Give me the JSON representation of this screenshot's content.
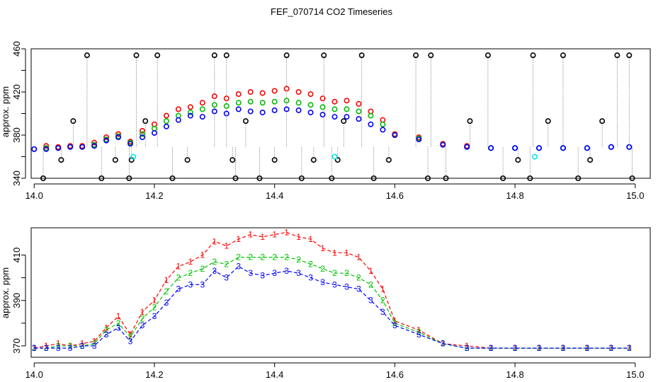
{
  "title": "FEF_070714  CO2 Timeseries",
  "chart_data": [
    {
      "type": "scatter",
      "title": "FEF_070714  CO2 Timeseries",
      "ylabel": "approx. ppm",
      "xlabel": "",
      "xlim": [
        13.995,
        15.025
      ],
      "ylim": [
        340,
        460
      ],
      "xticks": [
        14.0,
        14.2,
        14.4,
        14.6,
        14.8,
        15.0
      ],
      "xtick_labels": [
        "14.0",
        "14.2",
        "14.4",
        "14.6",
        "14.8",
        "15.0"
      ],
      "yticks": [
        340,
        380,
        420,
        460
      ],
      "ytick_labels": [
        "340",
        "380",
        "420",
        "460"
      ],
      "yminor_ticks": [
        360,
        400,
        440
      ],
      "grid": false,
      "colors": {
        "red": "#ff0000",
        "green": "#00c000",
        "blue": "#0000ff",
        "black": "#000000",
        "cyan": "#00e5ee"
      },
      "series": [
        {
          "color": "red",
          "x": [
            14.0,
            14.02,
            14.04,
            14.06,
            14.08,
            14.1,
            14.12,
            14.14,
            14.16,
            14.18,
            14.2,
            14.22,
            14.24,
            14.26,
            14.28,
            14.3,
            14.32,
            14.34,
            14.36,
            14.38,
            14.4,
            14.42,
            14.44,
            14.46,
            14.48,
            14.5,
            14.52,
            14.54,
            14.56,
            14.58,
            14.6,
            14.64,
            14.68,
            14.72,
            14.76,
            14.8,
            14.84,
            14.88,
            14.92,
            14.96,
            14.99
          ],
          "y": [
            367,
            370,
            369,
            370,
            370,
            373,
            378,
            381,
            374,
            384,
            390,
            398,
            404,
            406,
            410,
            416,
            414,
            418,
            420,
            419,
            421,
            423,
            420,
            418,
            414,
            411,
            412,
            409,
            402,
            394,
            381,
            378,
            372,
            370,
            368,
            368,
            368,
            368,
            368,
            369,
            369
          ]
        },
        {
          "color": "green",
          "x": [
            14.0,
            14.02,
            14.04,
            14.06,
            14.08,
            14.1,
            14.12,
            14.14,
            14.16,
            14.18,
            14.2,
            14.22,
            14.24,
            14.26,
            14.28,
            14.3,
            14.32,
            14.34,
            14.36,
            14.38,
            14.4,
            14.42,
            14.44,
            14.46,
            14.48,
            14.5,
            14.52,
            14.54,
            14.56,
            14.58,
            14.6,
            14.64,
            14.68,
            14.72,
            14.76,
            14.8,
            14.84,
            14.88,
            14.92,
            14.96,
            14.99
          ],
          "y": [
            367,
            368,
            368,
            369,
            369,
            371,
            376,
            379,
            373,
            381,
            386,
            393,
            398,
            401,
            404,
            408,
            407,
            410,
            411,
            410,
            411,
            412,
            410,
            408,
            406,
            404,
            404,
            402,
            398,
            390,
            380,
            377,
            371,
            369,
            368,
            368,
            368,
            368,
            368,
            369,
            369
          ]
        },
        {
          "color": "blue",
          "x": [
            14.0,
            14.02,
            14.04,
            14.06,
            14.08,
            14.1,
            14.12,
            14.14,
            14.16,
            14.18,
            14.2,
            14.22,
            14.24,
            14.26,
            14.28,
            14.3,
            14.32,
            14.34,
            14.36,
            14.38,
            14.4,
            14.42,
            14.44,
            14.46,
            14.48,
            14.5,
            14.52,
            14.54,
            14.56,
            14.58,
            14.6,
            14.64,
            14.68,
            14.72,
            14.76,
            14.8,
            14.84,
            14.88,
            14.92,
            14.96,
            14.99
          ],
          "y": [
            367,
            367,
            368,
            369,
            369,
            370,
            375,
            378,
            372,
            378,
            382,
            388,
            394,
            398,
            397,
            402,
            400,
            404,
            402,
            401,
            403,
            404,
            403,
            401,
            399,
            397,
            397,
            395,
            390,
            385,
            380,
            376,
            371,
            369,
            368,
            368,
            368,
            368,
            368,
            369,
            369
          ]
        },
        {
          "color": "black",
          "marker": "spike-circle",
          "x": [
            14.015,
            14.045,
            14.065,
            14.088,
            14.112,
            14.135,
            14.158,
            14.162,
            14.17,
            14.185,
            14.205,
            14.23,
            14.255,
            14.3,
            14.32,
            14.33,
            14.335,
            14.352,
            14.375,
            14.4,
            14.42,
            14.445,
            14.465,
            14.482,
            14.495,
            14.505,
            14.515,
            14.545,
            14.565,
            14.59,
            14.635,
            14.655,
            14.66,
            14.685,
            14.725,
            14.755,
            14.78,
            14.805,
            14.825,
            14.83,
            14.855,
            14.88,
            14.905,
            14.925,
            14.945,
            14.97,
            14.99,
            14.995
          ],
          "y": [
            340,
            357,
            393,
            454,
            340,
            357,
            340,
            357,
            454,
            393,
            454,
            340,
            357,
            454,
            454,
            357,
            340,
            393,
            340,
            357,
            454,
            340,
            357,
            454,
            340,
            357,
            393,
            454,
            340,
            357,
            454,
            340,
            454,
            340,
            393,
            454,
            340,
            357,
            340,
            454,
            393,
            454,
            340,
            357,
            393,
            454,
            454,
            340
          ]
        },
        {
          "color": "cyan",
          "x": [
            14.165,
            14.5,
            14.833
          ],
          "y": [
            360,
            360,
            360
          ]
        }
      ]
    },
    {
      "type": "line",
      "title": "",
      "ylabel": "approx. ppm",
      "xlabel": "",
      "xlim": [
        13.995,
        15.025
      ],
      "ylim": [
        365,
        422
      ],
      "xticks": [
        14.0,
        14.2,
        14.4,
        14.6,
        14.8,
        15.0
      ],
      "xtick_labels": [
        "14.0",
        "14.2",
        "14.4",
        "14.6",
        "14.8",
        "15.0"
      ],
      "yticks": [
        370,
        390,
        410
      ],
      "ytick_labels": [
        "370",
        "390",
        "410"
      ],
      "yminor_ticks": [
        380,
        400
      ],
      "grid": false,
      "colors": {
        "red": "#ff0000",
        "green": "#00c000",
        "blue": "#0000ff"
      },
      "series": [
        {
          "label": "1",
          "color": "red",
          "x": [
            14.0,
            14.02,
            14.04,
            14.06,
            14.08,
            14.1,
            14.12,
            14.14,
            14.16,
            14.18,
            14.2,
            14.22,
            14.24,
            14.26,
            14.28,
            14.3,
            14.32,
            14.34,
            14.36,
            14.38,
            14.4,
            14.42,
            14.44,
            14.46,
            14.48,
            14.5,
            14.52,
            14.54,
            14.56,
            14.58,
            14.6,
            14.64,
            14.68,
            14.72,
            14.76,
            14.8,
            14.84,
            14.88,
            14.92,
            14.96,
            14.99
          ],
          "y": [
            369,
            370,
            371,
            370,
            371,
            372,
            378,
            383,
            375,
            385,
            390,
            399,
            405,
            407,
            410,
            416,
            414,
            417,
            419,
            418,
            419,
            420,
            418,
            417,
            413,
            411,
            411,
            409,
            403,
            395,
            381,
            377,
            371,
            370,
            369,
            369,
            369,
            369,
            369,
            369,
            369
          ]
        },
        {
          "label": "2",
          "color": "green",
          "x": [
            14.0,
            14.02,
            14.04,
            14.06,
            14.08,
            14.1,
            14.12,
            14.14,
            14.16,
            14.18,
            14.2,
            14.22,
            14.24,
            14.26,
            14.28,
            14.3,
            14.32,
            14.34,
            14.36,
            14.38,
            14.4,
            14.42,
            14.44,
            14.46,
            14.48,
            14.5,
            14.52,
            14.54,
            14.56,
            14.58,
            14.6,
            14.64,
            14.68,
            14.72,
            14.76,
            14.8,
            14.84,
            14.88,
            14.92,
            14.96,
            14.99
          ],
          "y": [
            369,
            369,
            370,
            370,
            370,
            371,
            377,
            380,
            374,
            382,
            387,
            394,
            400,
            402,
            404,
            407,
            406,
            409,
            409,
            409,
            409,
            409,
            408,
            406,
            404,
            402,
            402,
            400,
            397,
            390,
            380,
            376,
            371,
            369,
            369,
            369,
            369,
            369,
            369,
            369,
            369
          ]
        },
        {
          "label": "3",
          "color": "blue",
          "x": [
            14.0,
            14.02,
            14.04,
            14.06,
            14.08,
            14.1,
            14.12,
            14.14,
            14.16,
            14.18,
            14.2,
            14.22,
            14.24,
            14.26,
            14.28,
            14.3,
            14.32,
            14.34,
            14.36,
            14.38,
            14.4,
            14.42,
            14.44,
            14.46,
            14.48,
            14.5,
            14.52,
            14.54,
            14.56,
            14.58,
            14.6,
            14.64,
            14.68,
            14.72,
            14.76,
            14.8,
            14.84,
            14.88,
            14.92,
            14.96,
            14.99
          ],
          "y": [
            369,
            369,
            369,
            369,
            370,
            370,
            375,
            378,
            372,
            379,
            383,
            389,
            395,
            397,
            397,
            403,
            400,
            405,
            402,
            401,
            402,
            403,
            402,
            400,
            398,
            397,
            396,
            395,
            390,
            385,
            379,
            375,
            371,
            369,
            369,
            369,
            369,
            369,
            369,
            369,
            369
          ]
        }
      ]
    }
  ]
}
